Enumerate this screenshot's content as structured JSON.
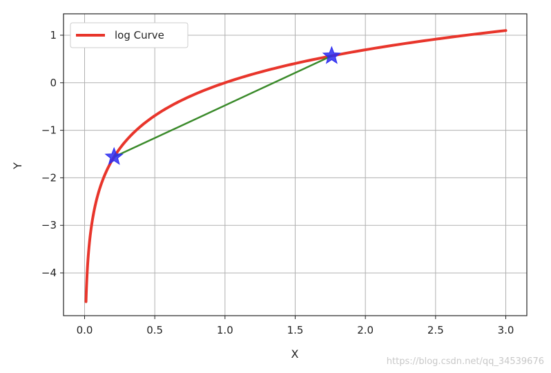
{
  "chart_data": {
    "type": "line",
    "title": "",
    "xlabel": "X",
    "ylabel": "Y",
    "xlim": [
      -0.15,
      3.15
    ],
    "ylim": [
      -4.9,
      1.45
    ],
    "xticks": [
      0.0,
      0.5,
      1.0,
      1.5,
      2.0,
      2.5,
      3.0
    ],
    "xtick_labels": [
      "0.0",
      "0.5",
      "1.0",
      "1.5",
      "2.0",
      "2.5",
      "3.0"
    ],
    "yticks": [
      1,
      0,
      -1,
      -2,
      -3,
      -4
    ],
    "ytick_labels": [
      "1",
      "0",
      "−1",
      "−2",
      "−3",
      "−4"
    ],
    "grid": true,
    "legend": {
      "position": "top-left",
      "entries": [
        "log Curve"
      ]
    },
    "series": [
      {
        "name": "log Curve",
        "kind": "line",
        "function": "ln(x)",
        "x_range": [
          0.01,
          3.0
        ],
        "color": "#e8352b"
      },
      {
        "name": "secant",
        "kind": "line",
        "x": [
          0.21,
          1.76
        ],
        "y": [
          -1.56,
          0.565
        ],
        "color": "#3a8a2a"
      },
      {
        "name": "points",
        "kind": "scatter",
        "marker": "star",
        "x": [
          0.21,
          1.76
        ],
        "y": [
          -1.56,
          0.565
        ],
        "color": "#2b2bf0"
      }
    ]
  },
  "watermark": "https://blog.csdn.net/qq_34539676"
}
